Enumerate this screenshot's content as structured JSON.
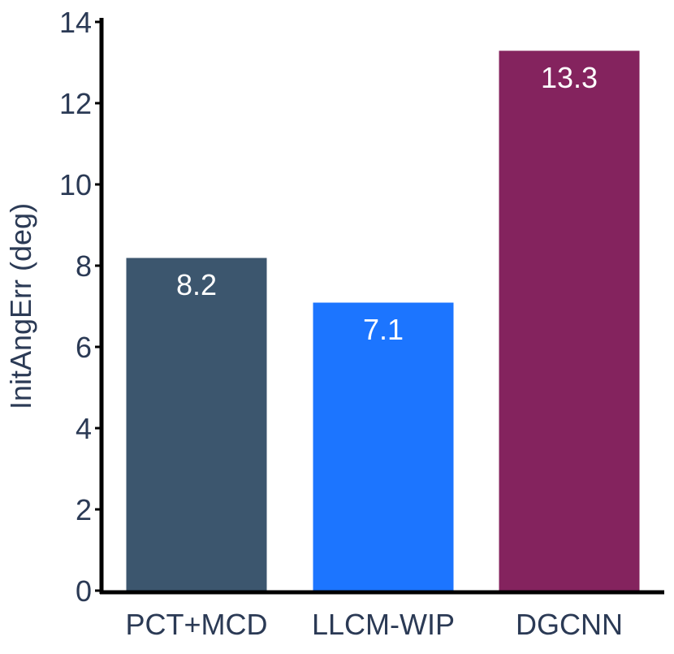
{
  "chart_data": {
    "type": "bar",
    "categories": [
      "PCT+MCD",
      "LLCM-WIP",
      "DGCNN"
    ],
    "values": [
      8.2,
      7.1,
      13.3
    ],
    "data_labels": [
      "8.2",
      "7.1",
      "13.3"
    ],
    "colors": [
      "#3c566e",
      "#1c75ff",
      "#84235e"
    ],
    "title": "",
    "xlabel": "",
    "ylabel": "InitAngErr (deg)",
    "ylim": [
      0,
      14
    ],
    "yticks": [
      0,
      2,
      4,
      6,
      8,
      10,
      12,
      14
    ],
    "grid": false,
    "legend": "none"
  }
}
